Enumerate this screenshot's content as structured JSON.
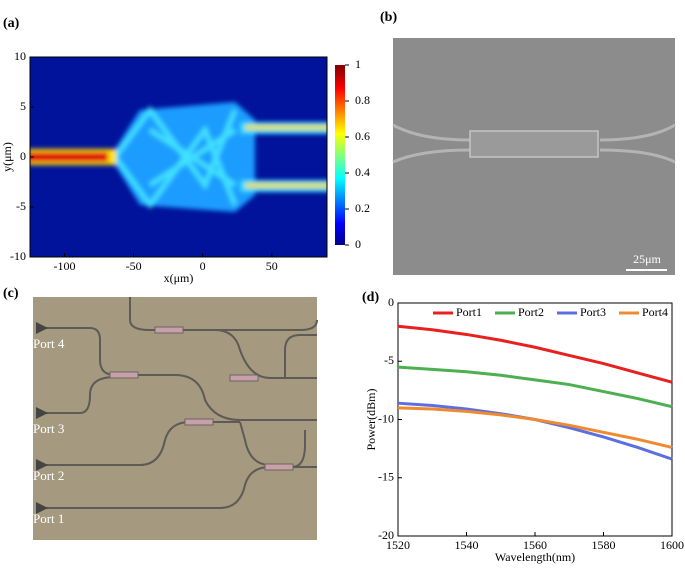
{
  "figure": {
    "panel_labels": [
      "(a)",
      "(b)",
      "(c)",
      "(d)"
    ],
    "scale_bar": "25μm",
    "ports": [
      "Port 4",
      "Port 3",
      "Port 2",
      "Port 1"
    ]
  },
  "chart_data": [
    {
      "type": "heatmap",
      "xlabel": "x(μm)",
      "ylabel": "y(μm)",
      "xlim": [
        -125,
        90
      ],
      "xticks": [
        -100,
        -50,
        0,
        50
      ],
      "ylim": [
        -10,
        10
      ],
      "yticks": [
        -10,
        -5,
        0,
        5,
        10
      ],
      "colorbar": {
        "lim": [
          0,
          1
        ],
        "ticks": [
          0,
          0.2,
          0.4,
          0.6,
          0.8,
          1
        ]
      }
    },
    {
      "type": "line",
      "xlabel": "Wavelength(nm)",
      "ylabel": "Power(dBm)",
      "xlim": [
        1520,
        1600
      ],
      "xticks": [
        1520,
        1540,
        1560,
        1580,
        1600
      ],
      "ylim": [
        -20,
        0
      ],
      "yticks": [
        -20,
        -15,
        -10,
        -5,
        0
      ],
      "legend": "top",
      "x": [
        1520,
        1530,
        1540,
        1550,
        1560,
        1570,
        1580,
        1590,
        1600
      ],
      "series": [
        {
          "name": "Port1",
          "color": "#e8211f",
          "values": [
            -2.0,
            -2.3,
            -2.7,
            -3.2,
            -3.8,
            -4.5,
            -5.2,
            -6.0,
            -6.8
          ]
        },
        {
          "name": "Port2",
          "color": "#4caf50",
          "values": [
            -5.5,
            -5.7,
            -5.9,
            -6.2,
            -6.6,
            -7.0,
            -7.6,
            -8.2,
            -8.9
          ]
        },
        {
          "name": "Port3",
          "color": "#5b6fe0",
          "values": [
            -8.6,
            -8.8,
            -9.1,
            -9.5,
            -10.0,
            -10.7,
            -11.5,
            -12.4,
            -13.4
          ]
        },
        {
          "name": "Port4",
          "color": "#f08a30",
          "values": [
            -9.0,
            -9.1,
            -9.3,
            -9.6,
            -10.0,
            -10.5,
            -11.1,
            -11.7,
            -12.4
          ]
        }
      ]
    }
  ]
}
